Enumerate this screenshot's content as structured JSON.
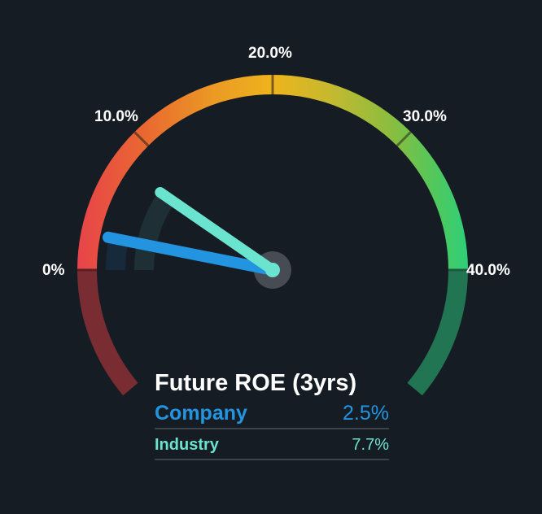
{
  "chart_data": {
    "type": "gauge",
    "title": "Future ROE (3yrs)",
    "min": 0,
    "max": 40,
    "tick_labels": [
      "0%",
      "10.0%",
      "20.0%",
      "30.0%",
      "40.0%"
    ],
    "ticks": [
      0,
      10,
      20,
      30,
      40
    ],
    "series": [
      {
        "name": "Company",
        "value": 2.5,
        "label": "2.5%",
        "color": "#2394df"
      },
      {
        "name": "Industry",
        "value": 7.7,
        "label": "7.7%",
        "color": "#6ae3cf"
      }
    ],
    "gradient": [
      "#e8434a",
      "#e96a30",
      "#eb9a24",
      "#eeb41c",
      "#c4b92f",
      "#8cbd3e",
      "#4fc85e",
      "#2ecf79"
    ]
  },
  "labels": {
    "t0": "0%",
    "t10": "10.0%",
    "t20": "20.0%",
    "t30": "30.0%",
    "t40": "40.0%"
  },
  "legend": {
    "title": "Future ROE (3yrs)",
    "company": {
      "name": "Company",
      "value": "2.5%"
    },
    "industry": {
      "name": "Industry",
      "value": "7.7%"
    }
  }
}
